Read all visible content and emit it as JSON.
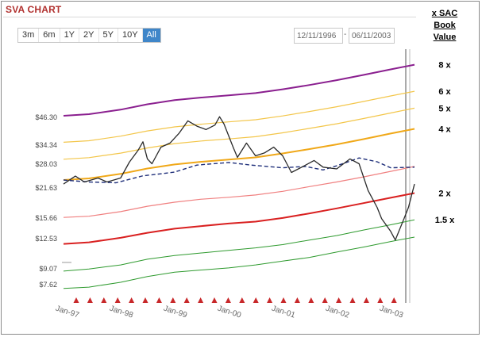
{
  "page": {
    "title": "SVA CHART",
    "legend_header": [
      "x SAC",
      "Book",
      "Value"
    ]
  },
  "range_buttons": [
    {
      "label": "3m",
      "active": false
    },
    {
      "label": "6m",
      "active": false
    },
    {
      "label": "1Y",
      "active": false
    },
    {
      "label": "2Y",
      "active": false
    },
    {
      "label": "5Y",
      "active": false
    },
    {
      "label": "10Y",
      "active": false
    },
    {
      "label": "All",
      "active": true
    }
  ],
  "date_range": {
    "start": "12/11/1996",
    "separator": "-",
    "end": "06/11/2003"
  },
  "chart_data": {
    "type": "line",
    "title": "SVA CHART",
    "x_range": [
      "1996-12-11",
      "2003-06-11"
    ],
    "x_tick_labels": [
      "Jan-97",
      "Jan-98",
      "Jan-99",
      "Jan-00",
      "Jan-01",
      "Jan-02",
      "Jan-03"
    ],
    "x_ticks": [
      "1997-01-01",
      "1998-01-01",
      "1999-01-01",
      "2000-01-01",
      "2001-01-01",
      "2002-01-01",
      "2003-01-01"
    ],
    "y_scale": "log",
    "y_tick_labels": [
      "$46.30",
      "$34.34",
      "$28.03",
      "$21.63",
      "$15.66",
      "$12.53",
      "$9.07",
      "$7.62"
    ],
    "y_ticks": [
      46.3,
      34.34,
      28.03,
      21.63,
      15.66,
      12.53,
      9.07,
      7.62
    ],
    "grid": false,
    "legend": "right",
    "multiple_labels": [
      "8 x",
      "6 x",
      "5 x",
      "4 x",
      "2 x",
      "1.5 x"
    ],
    "series": [
      {
        "name": "8 x",
        "color": "#8a1f8f",
        "width": 2.0,
        "dash": "",
        "values": [
          {
            "x": "1996-12-11",
            "y": 47.0
          },
          {
            "x": "1997-06-01",
            "y": 47.8
          },
          {
            "x": "1998-01-01",
            "y": 50.2
          },
          {
            "x": "1998-07-01",
            "y": 53.2
          },
          {
            "x": "1999-01-01",
            "y": 55.6
          },
          {
            "x": "1999-07-01",
            "y": 57.2
          },
          {
            "x": "2000-01-01",
            "y": 58.6
          },
          {
            "x": "2000-07-01",
            "y": 60.0
          },
          {
            "x": "2001-01-01",
            "y": 62.5
          },
          {
            "x": "2001-07-01",
            "y": 65.5
          },
          {
            "x": "2002-01-01",
            "y": 69.0
          },
          {
            "x": "2002-07-01",
            "y": 73.0
          },
          {
            "x": "2003-01-01",
            "y": 77.5
          },
          {
            "x": "2003-06-11",
            "y": 81.5
          }
        ]
      },
      {
        "name": "6 x",
        "color": "#f3c64a",
        "width": 1.2,
        "dash": "",
        "values": [
          {
            "x": "1996-12-11",
            "y": 35.3
          },
          {
            "x": "1997-06-01",
            "y": 35.9
          },
          {
            "x": "1998-01-01",
            "y": 37.7
          },
          {
            "x": "1998-07-01",
            "y": 39.9
          },
          {
            "x": "1999-01-01",
            "y": 41.7
          },
          {
            "x": "1999-07-01",
            "y": 42.9
          },
          {
            "x": "2000-01-01",
            "y": 44.0
          },
          {
            "x": "2000-07-01",
            "y": 45.0
          },
          {
            "x": "2001-01-01",
            "y": 46.9
          },
          {
            "x": "2001-07-01",
            "y": 49.2
          },
          {
            "x": "2002-01-01",
            "y": 51.8
          },
          {
            "x": "2002-07-01",
            "y": 54.8
          },
          {
            "x": "2003-01-01",
            "y": 58.2
          },
          {
            "x": "2003-06-11",
            "y": 61.2
          }
        ]
      },
      {
        "name": "5 x",
        "color": "#f3c64a",
        "width": 1.2,
        "dash": "",
        "values": [
          {
            "x": "1996-12-11",
            "y": 29.4
          },
          {
            "x": "1997-06-01",
            "y": 29.9
          },
          {
            "x": "1998-01-01",
            "y": 31.4
          },
          {
            "x": "1998-07-01",
            "y": 33.2
          },
          {
            "x": "1999-01-01",
            "y": 34.8
          },
          {
            "x": "1999-07-01",
            "y": 35.8
          },
          {
            "x": "2000-01-01",
            "y": 36.6
          },
          {
            "x": "2000-07-01",
            "y": 37.5
          },
          {
            "x": "2001-01-01",
            "y": 39.1
          },
          {
            "x": "2001-07-01",
            "y": 41.0
          },
          {
            "x": "2002-01-01",
            "y": 43.1
          },
          {
            "x": "2002-07-01",
            "y": 45.6
          },
          {
            "x": "2003-01-01",
            "y": 48.4
          },
          {
            "x": "2003-06-11",
            "y": 51.0
          }
        ]
      },
      {
        "name": "4 x",
        "color": "#f0a818",
        "width": 2.0,
        "dash": "",
        "values": [
          {
            "x": "1996-12-11",
            "y": 23.5
          },
          {
            "x": "1997-06-01",
            "y": 23.9
          },
          {
            "x": "1998-01-01",
            "y": 25.1
          },
          {
            "x": "1998-07-01",
            "y": 26.6
          },
          {
            "x": "1999-01-01",
            "y": 27.8
          },
          {
            "x": "1999-07-01",
            "y": 28.6
          },
          {
            "x": "2000-01-01",
            "y": 29.3
          },
          {
            "x": "2000-07-01",
            "y": 30.0
          },
          {
            "x": "2001-01-01",
            "y": 31.3
          },
          {
            "x": "2001-07-01",
            "y": 32.8
          },
          {
            "x": "2002-01-01",
            "y": 34.5
          },
          {
            "x": "2002-07-01",
            "y": 36.5
          },
          {
            "x": "2003-01-01",
            "y": 38.8
          },
          {
            "x": "2003-06-11",
            "y": 40.8
          }
        ]
      },
      {
        "name": "",
        "color": "#f08080",
        "width": 1.2,
        "dash": "",
        "values": [
          {
            "x": "1996-12-11",
            "y": 15.7
          },
          {
            "x": "1997-06-01",
            "y": 15.9
          },
          {
            "x": "1998-01-01",
            "y": 16.7
          },
          {
            "x": "1998-07-01",
            "y": 17.7
          },
          {
            "x": "1999-01-01",
            "y": 18.5
          },
          {
            "x": "1999-07-01",
            "y": 19.1
          },
          {
            "x": "2000-01-01",
            "y": 19.5
          },
          {
            "x": "2000-07-01",
            "y": 20.0
          },
          {
            "x": "2001-01-01",
            "y": 20.8
          },
          {
            "x": "2001-07-01",
            "y": 21.9
          },
          {
            "x": "2002-01-01",
            "y": 23.0
          },
          {
            "x": "2002-07-01",
            "y": 24.3
          },
          {
            "x": "2003-01-01",
            "y": 25.8
          },
          {
            "x": "2003-06-11",
            "y": 27.2
          }
        ]
      },
      {
        "name": "2 x",
        "color": "#d92020",
        "width": 2.0,
        "dash": "",
        "values": [
          {
            "x": "1996-12-11",
            "y": 11.8
          },
          {
            "x": "1997-06-01",
            "y": 12.0
          },
          {
            "x": "1998-01-01",
            "y": 12.6
          },
          {
            "x": "1998-07-01",
            "y": 13.3
          },
          {
            "x": "1999-01-01",
            "y": 13.9
          },
          {
            "x": "1999-07-01",
            "y": 14.3
          },
          {
            "x": "2000-01-01",
            "y": 14.7
          },
          {
            "x": "2000-07-01",
            "y": 15.0
          },
          {
            "x": "2001-01-01",
            "y": 15.6
          },
          {
            "x": "2001-07-01",
            "y": 16.4
          },
          {
            "x": "2002-01-01",
            "y": 17.3
          },
          {
            "x": "2002-07-01",
            "y": 18.3
          },
          {
            "x": "2003-01-01",
            "y": 19.4
          },
          {
            "x": "2003-06-11",
            "y": 20.4
          }
        ]
      },
      {
        "name": "1.5 x",
        "color": "#2e9a2e",
        "width": 1.0,
        "dash": "",
        "values": [
          {
            "x": "1996-12-11",
            "y": 8.8
          },
          {
            "x": "1997-06-01",
            "y": 9.0
          },
          {
            "x": "1998-01-01",
            "y": 9.4
          },
          {
            "x": "1998-07-01",
            "y": 10.0
          },
          {
            "x": "1999-01-01",
            "y": 10.4
          },
          {
            "x": "1999-07-01",
            "y": 10.7
          },
          {
            "x": "2000-01-01",
            "y": 11.0
          },
          {
            "x": "2000-07-01",
            "y": 11.3
          },
          {
            "x": "2001-01-01",
            "y": 11.7
          },
          {
            "x": "2001-07-01",
            "y": 12.3
          },
          {
            "x": "2002-01-01",
            "y": 12.9
          },
          {
            "x": "2002-07-01",
            "y": 13.7
          },
          {
            "x": "2003-01-01",
            "y": 14.5
          },
          {
            "x": "2003-06-11",
            "y": 15.3
          }
        ]
      },
      {
        "name": "",
        "color": "#2e9a2e",
        "width": 1.0,
        "dash": "",
        "values": [
          {
            "x": "1996-12-11",
            "y": 7.3
          },
          {
            "x": "1997-06-01",
            "y": 7.4
          },
          {
            "x": "1998-01-01",
            "y": 7.8
          },
          {
            "x": "1998-07-01",
            "y": 8.3
          },
          {
            "x": "1999-01-01",
            "y": 8.7
          },
          {
            "x": "1999-07-01",
            "y": 8.9
          },
          {
            "x": "2000-01-01",
            "y": 9.1
          },
          {
            "x": "2000-07-01",
            "y": 9.4
          },
          {
            "x": "2001-01-01",
            "y": 9.8
          },
          {
            "x": "2001-07-01",
            "y": 10.2
          },
          {
            "x": "2002-01-01",
            "y": 10.8
          },
          {
            "x": "2002-07-01",
            "y": 11.4
          },
          {
            "x": "2003-01-01",
            "y": 12.1
          },
          {
            "x": "2003-06-11",
            "y": 12.7
          }
        ]
      },
      {
        "name": "",
        "color": "#1f2f7a",
        "width": 1.4,
        "dash": "5,3",
        "values": [
          {
            "x": "1996-12-11",
            "y": 23.5
          },
          {
            "x": "1997-06-01",
            "y": 23.0
          },
          {
            "x": "1997-12-01",
            "y": 22.8
          },
          {
            "x": "1998-06-01",
            "y": 24.6
          },
          {
            "x": "1998-09-01",
            "y": 25.0
          },
          {
            "x": "1999-01-01",
            "y": 25.6
          },
          {
            "x": "1999-06-01",
            "y": 27.6
          },
          {
            "x": "2000-01-01",
            "y": 28.4
          },
          {
            "x": "2000-06-01",
            "y": 27.6
          },
          {
            "x": "2001-01-01",
            "y": 26.8
          },
          {
            "x": "2001-06-01",
            "y": 27.2
          },
          {
            "x": "2001-10-01",
            "y": 26.2
          },
          {
            "x": "2002-01-01",
            "y": 27.4
          },
          {
            "x": "2002-06-01",
            "y": 29.8
          },
          {
            "x": "2002-10-01",
            "y": 28.6
          },
          {
            "x": "2003-01-01",
            "y": 26.8
          },
          {
            "x": "2003-06-11",
            "y": 27.0
          }
        ]
      },
      {
        "name": "",
        "color": "#2a2a2a",
        "width": 1.3,
        "dash": "",
        "values": [
          {
            "x": "1996-12-11",
            "y": 22.5
          },
          {
            "x": "1997-03-01",
            "y": 24.5
          },
          {
            "x": "1997-05-01",
            "y": 23.0
          },
          {
            "x": "1997-08-01",
            "y": 24.0
          },
          {
            "x": "1997-10-01",
            "y": 23.0
          },
          {
            "x": "1998-01-01",
            "y": 24.0
          },
          {
            "x": "1998-03-01",
            "y": 28.5
          },
          {
            "x": "1998-05-01",
            "y": 32.5
          },
          {
            "x": "1998-06-01",
            "y": 35.5
          },
          {
            "x": "1998-07-01",
            "y": 29.5
          },
          {
            "x": "1998-08-01",
            "y": 28.0
          },
          {
            "x": "1998-10-01",
            "y": 33.5
          },
          {
            "x": "1998-12-01",
            "y": 35.0
          },
          {
            "x": "1999-02-01",
            "y": 39.0
          },
          {
            "x": "1999-04-01",
            "y": 44.5
          },
          {
            "x": "1999-06-01",
            "y": 42.0
          },
          {
            "x": "1999-08-01",
            "y": 40.5
          },
          {
            "x": "1999-10-01",
            "y": 42.5
          },
          {
            "x": "1999-11-01",
            "y": 46.5
          },
          {
            "x": "1999-12-01",
            "y": 43.0
          },
          {
            "x": "2000-02-01",
            "y": 33.5
          },
          {
            "x": "2000-03-01",
            "y": 30.0
          },
          {
            "x": "2000-05-01",
            "y": 35.0
          },
          {
            "x": "2000-07-01",
            "y": 30.5
          },
          {
            "x": "2000-09-01",
            "y": 31.5
          },
          {
            "x": "2000-11-01",
            "y": 33.5
          },
          {
            "x": "2001-01-01",
            "y": 30.5
          },
          {
            "x": "2001-03-01",
            "y": 25.5
          },
          {
            "x": "2001-06-01",
            "y": 27.5
          },
          {
            "x": "2001-08-01",
            "y": 29.0
          },
          {
            "x": "2001-10-01",
            "y": 27.0
          },
          {
            "x": "2002-01-01",
            "y": 26.5
          },
          {
            "x": "2002-04-01",
            "y": 29.5
          },
          {
            "x": "2002-06-01",
            "y": 28.0
          },
          {
            "x": "2002-08-01",
            "y": 21.0
          },
          {
            "x": "2002-10-01",
            "y": 17.5
          },
          {
            "x": "2002-11-01",
            "y": 15.5
          },
          {
            "x": "2003-01-01",
            "y": 13.5
          },
          {
            "x": "2003-02-01",
            "y": 12.3
          },
          {
            "x": "2003-04-01",
            "y": 15.5
          },
          {
            "x": "2003-05-01",
            "y": 17.5
          },
          {
            "x": "2003-06-11",
            "y": 22.5
          }
        ]
      }
    ]
  }
}
